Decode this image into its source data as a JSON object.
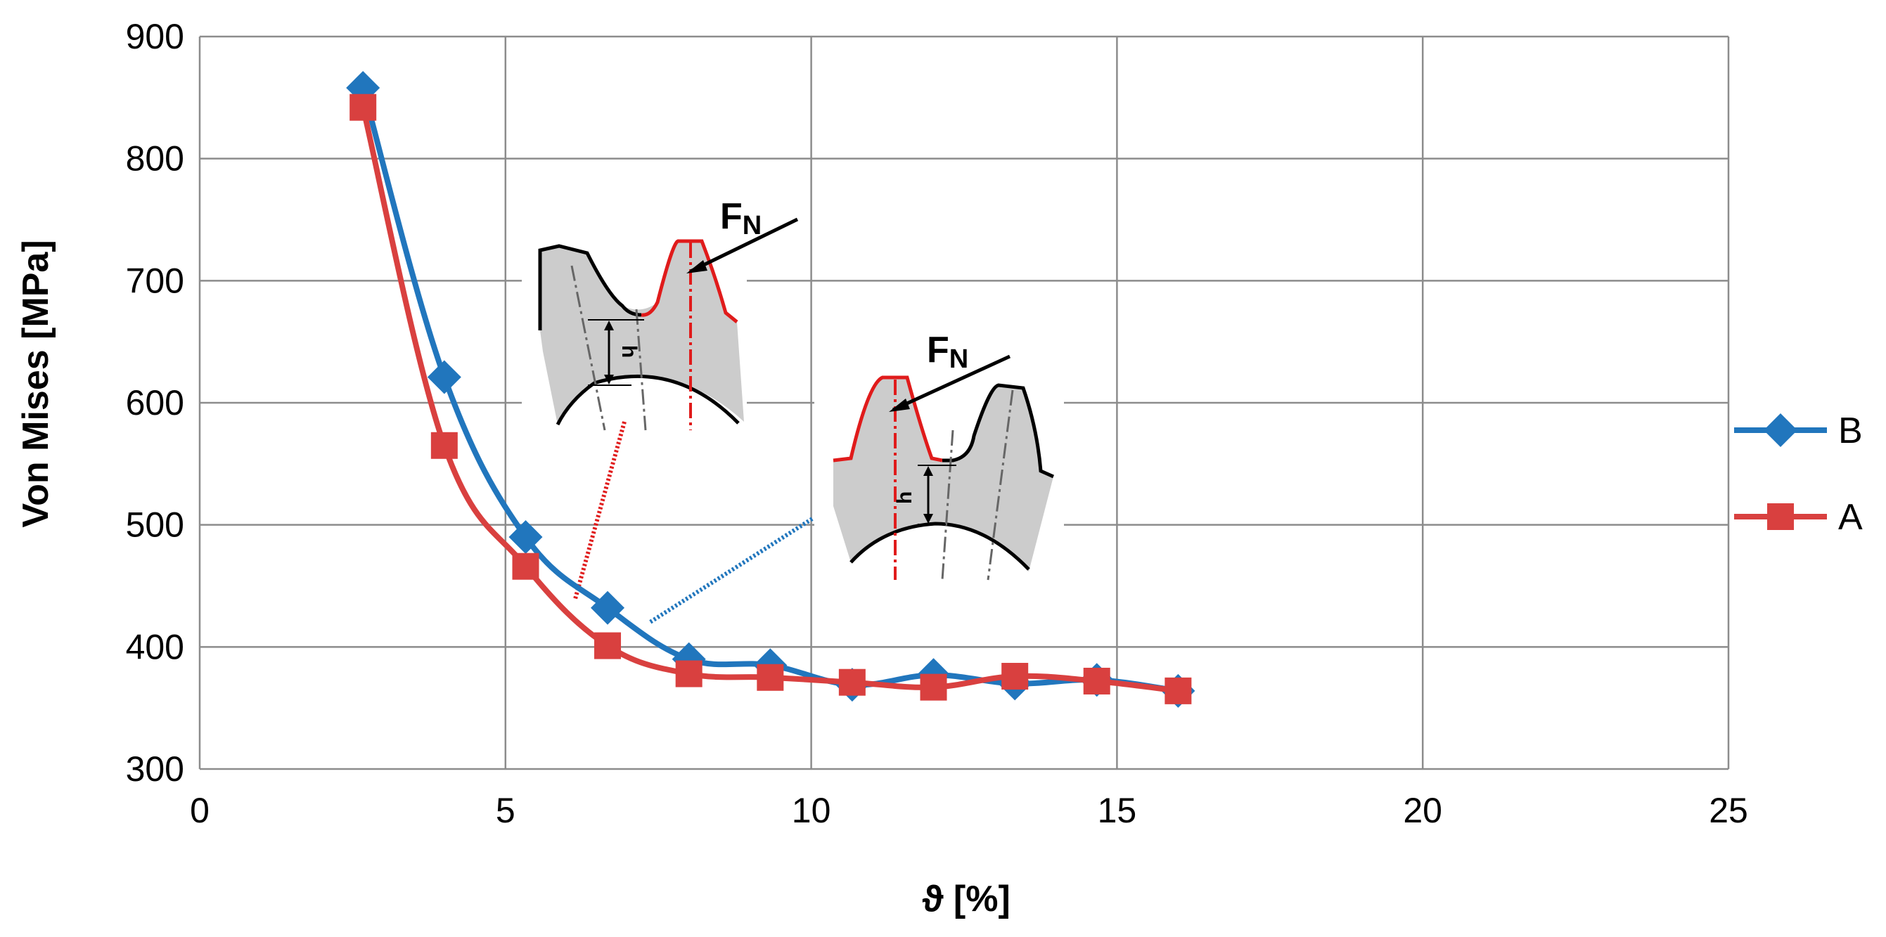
{
  "chart_data": {
    "type": "line",
    "xlabel": "ϑ [%]",
    "ylabel": "Von Mises [MPa]",
    "xlim": [
      0,
      25
    ],
    "ylim": [
      300,
      900
    ],
    "x_ticks": [
      0,
      5,
      10,
      15,
      20,
      25
    ],
    "y_ticks": [
      300,
      400,
      500,
      600,
      700,
      800,
      900
    ],
    "grid": true,
    "legend_position": "right",
    "series": [
      {
        "name": "B",
        "color": "#2176bd",
        "marker": "diamond",
        "x": [
          2.67,
          4.0,
          5.33,
          6.67,
          8.0,
          9.33,
          10.67,
          12.0,
          13.33,
          14.67,
          16.0
        ],
        "y": [
          858,
          621,
          490,
          432,
          390,
          385,
          369,
          377,
          370,
          373,
          364
        ]
      },
      {
        "name": "A",
        "color": "#d9403f",
        "marker": "square",
        "x": [
          2.67,
          4.0,
          5.33,
          6.67,
          8.0,
          9.33,
          10.67,
          12.0,
          13.33,
          14.67,
          16.0
        ],
        "y": [
          842,
          565,
          466,
          401,
          378,
          375,
          371,
          367,
          376,
          372,
          364
        ]
      }
    ],
    "annotations": [
      {
        "text": "F",
        "subscript": "N"
      },
      {
        "text": "h"
      }
    ]
  }
}
